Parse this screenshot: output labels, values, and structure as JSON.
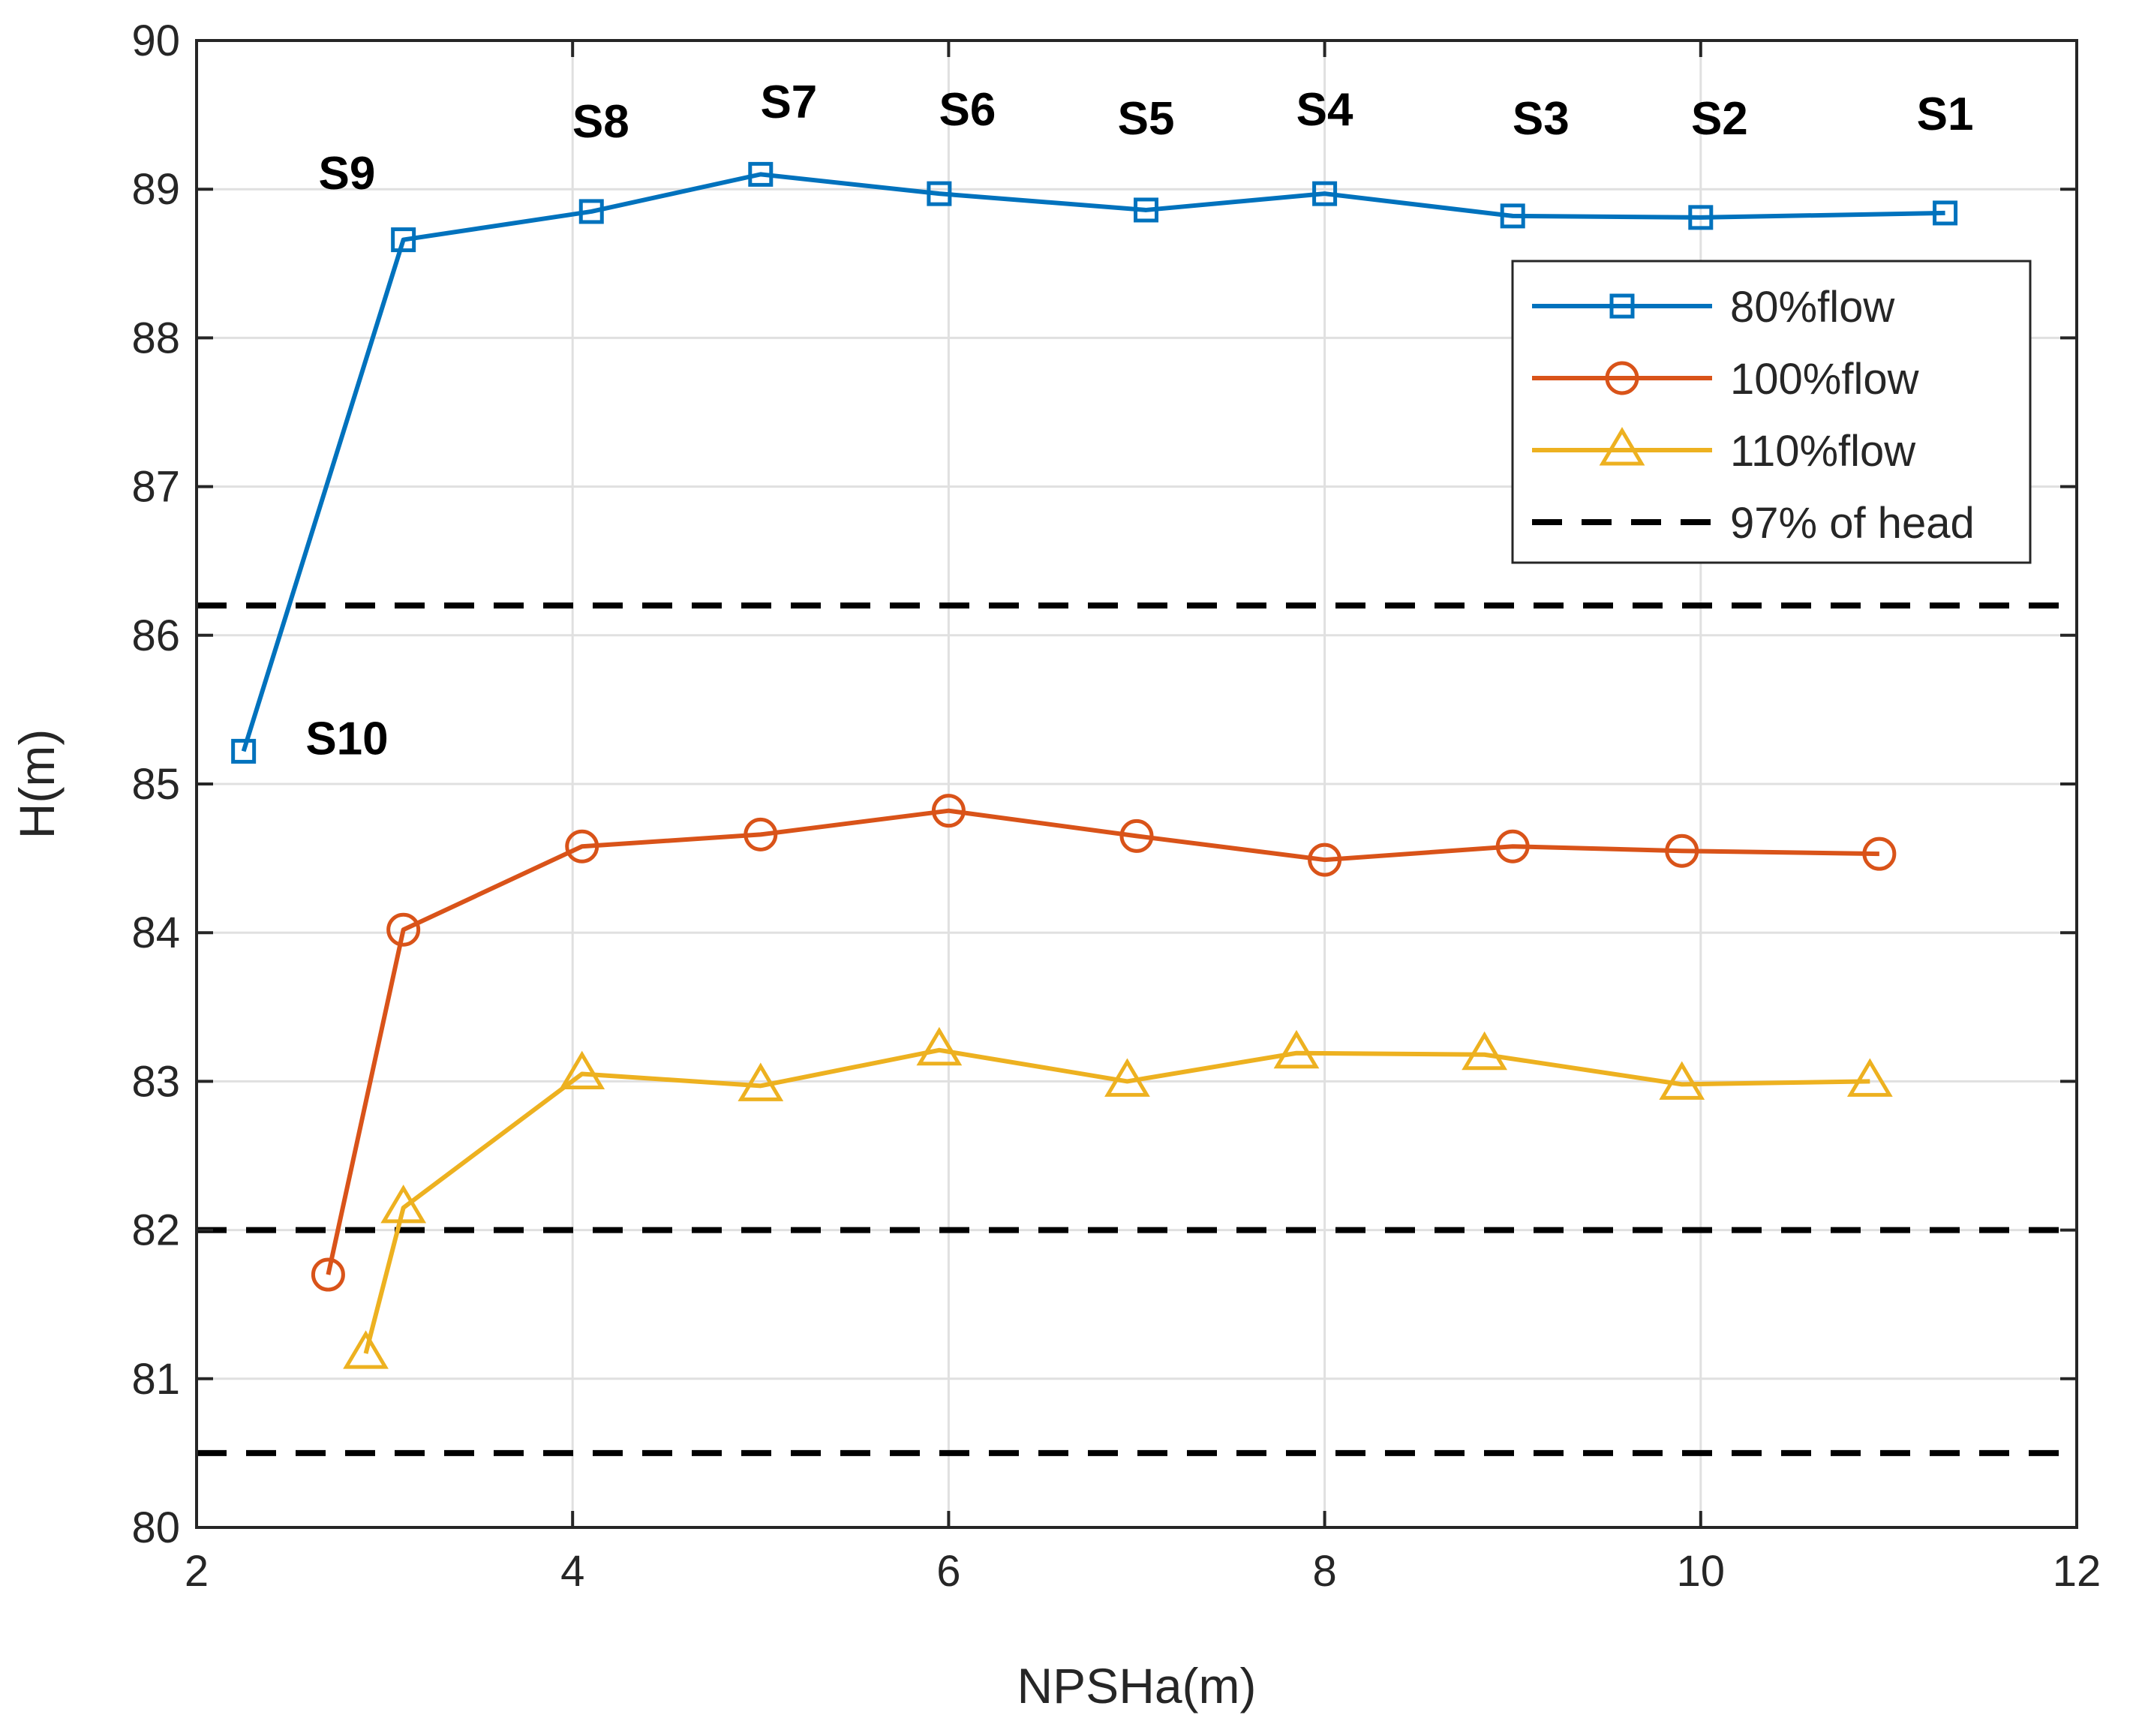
{
  "chart_data": {
    "type": "line",
    "title": "",
    "xlabel": "NPSHa(m)",
    "ylabel": "H(m)",
    "xlim": [
      2,
      12
    ],
    "ylim": [
      80,
      90
    ],
    "xticks": [
      2,
      4,
      6,
      8,
      10,
      12
    ],
    "yticks": [
      80,
      81,
      82,
      83,
      84,
      85,
      86,
      87,
      88,
      89,
      90
    ],
    "grid": true,
    "legend_position": "top-right",
    "series": [
      {
        "name": "80%flow",
        "color": "#0072BD",
        "marker": "square",
        "x": [
          2.25,
          3.1,
          4.1,
          5.0,
          5.95,
          7.05,
          8.0,
          9.0,
          10.0,
          11.3
        ],
        "y": [
          85.22,
          88.66,
          88.85,
          89.1,
          88.97,
          88.86,
          88.97,
          88.82,
          88.81,
          88.84
        ]
      },
      {
        "name": "100%flow",
        "color": "#D95319",
        "marker": "circle",
        "x": [
          2.7,
          3.1,
          4.05,
          5.0,
          6.0,
          7.0,
          8.0,
          9.0,
          9.9,
          10.95
        ],
        "y": [
          81.7,
          84.02,
          84.58,
          84.66,
          84.82,
          84.65,
          84.49,
          84.58,
          84.55,
          84.53
        ]
      },
      {
        "name": "110%flow",
        "color": "#EDB120",
        "marker": "triangle",
        "x": [
          2.9,
          3.1,
          4.05,
          5.0,
          5.95,
          6.95,
          7.85,
          8.85,
          9.9,
          10.9
        ],
        "y": [
          81.17,
          82.15,
          83.05,
          82.97,
          83.21,
          83.0,
          83.19,
          83.18,
          82.98,
          83.0
        ]
      }
    ],
    "reference_lines": {
      "name": "97% of head",
      "color": "#000000",
      "y": [
        86.2,
        82.0,
        80.5
      ]
    },
    "point_labels": [
      {
        "text": "S1",
        "x": 11.3,
        "y": 89.4
      },
      {
        "text": "S2",
        "x": 10.1,
        "y": 89.37
      },
      {
        "text": "S3",
        "x": 9.15,
        "y": 89.37
      },
      {
        "text": "S4",
        "x": 8.0,
        "y": 89.43
      },
      {
        "text": "S5",
        "x": 7.05,
        "y": 89.37
      },
      {
        "text": "S6",
        "x": 6.1,
        "y": 89.43
      },
      {
        "text": "S7",
        "x": 5.15,
        "y": 89.48
      },
      {
        "text": "S8",
        "x": 4.15,
        "y": 89.35
      },
      {
        "text": "S9",
        "x": 2.8,
        "y": 89.0
      },
      {
        "text": "S10",
        "x": 2.8,
        "y": 85.2
      }
    ]
  }
}
